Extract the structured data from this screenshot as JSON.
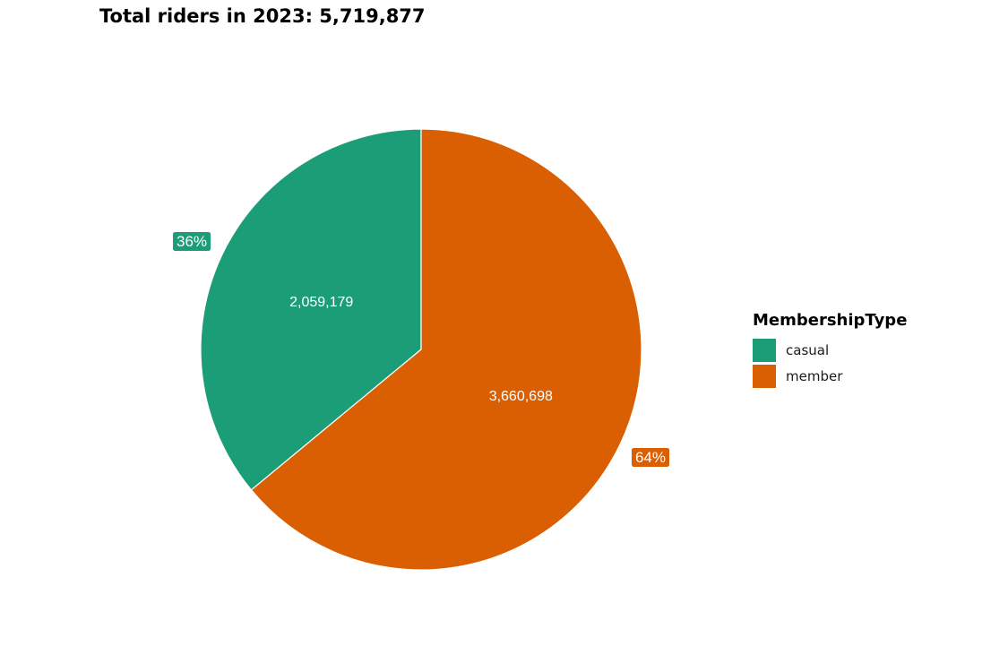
{
  "chart_data": {
    "type": "pie",
    "title": "Total riders in 2023: 5,719,877",
    "legend_title": "MembershipType",
    "legend_position": "right",
    "slices": [
      {
        "name": "casual",
        "value": 2059179,
        "value_label": "2,059,179",
        "percent_label": "36%",
        "color": "#1B9E77"
      },
      {
        "name": "member",
        "value": 3660698,
        "value_label": "3,660,698",
        "percent_label": "64%",
        "color": "#D95F02"
      }
    ]
  }
}
